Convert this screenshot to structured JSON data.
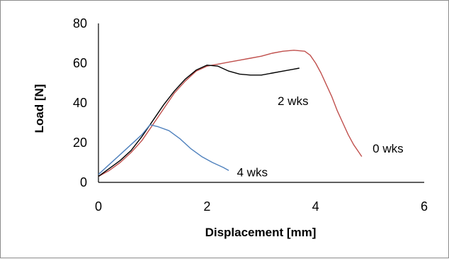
{
  "chart_data": {
    "type": "line",
    "title": "",
    "xlabel": "Displacement [mm]",
    "ylabel": "Load [N]",
    "xlim": [
      0,
      6
    ],
    "ylim": [
      0,
      80
    ],
    "xticks": [
      "0",
      "2",
      "4",
      "6"
    ],
    "yticks": [
      "0",
      "20",
      "40",
      "60",
      "80"
    ],
    "grid": false,
    "legend": "none; series labeled directly next to curves",
    "series": [
      {
        "name": "0 wks",
        "color": "#c0504d",
        "x": [
          0,
          0.2,
          0.4,
          0.6,
          0.8,
          1.0,
          1.2,
          1.4,
          1.6,
          1.8,
          2.0,
          2.2,
          2.4,
          2.6,
          2.8,
          3.0,
          3.2,
          3.4,
          3.6,
          3.8,
          3.9,
          4.0,
          4.1,
          4.2,
          4.3,
          4.4,
          4.5,
          4.6,
          4.7,
          4.8,
          4.85
        ],
        "y": [
          3,
          6,
          10,
          15,
          21,
          29,
          37,
          45,
          51,
          56,
          58.5,
          59.5,
          60.5,
          61.5,
          62.5,
          63.5,
          65,
          66,
          66.5,
          66,
          64,
          60,
          55,
          49,
          43,
          36,
          30,
          24,
          19,
          15,
          13
        ]
      },
      {
        "name": "2 wks",
        "color": "#000000",
        "x": [
          0,
          0.2,
          0.4,
          0.6,
          0.8,
          1.0,
          1.2,
          1.4,
          1.6,
          1.8,
          2.0,
          2.2,
          2.4,
          2.6,
          2.8,
          3.0,
          3.2,
          3.4,
          3.6,
          3.7
        ],
        "y": [
          3,
          7,
          11,
          16,
          23,
          31,
          39,
          46,
          52,
          56.5,
          59,
          58.5,
          56,
          54.5,
          54,
          54,
          55,
          56,
          57,
          57.5
        ]
      },
      {
        "name": "4 wks",
        "color": "#4f81bd",
        "x": [
          0,
          0.2,
          0.4,
          0.6,
          0.8,
          0.95,
          1.1,
          1.3,
          1.5,
          1.7,
          1.9,
          2.1,
          2.3,
          2.4
        ],
        "y": [
          4,
          9,
          14,
          19,
          24,
          29,
          28,
          26,
          22,
          17,
          13,
          10,
          7.5,
          6
        ]
      }
    ],
    "labels": [
      {
        "series": "0 wks",
        "text": "0 wks",
        "x": 5.05,
        "y": 15
      },
      {
        "series": "2 wks",
        "text": "2 wks",
        "x": 3.3,
        "y": 39
      },
      {
        "series": "4 wks",
        "text": "4 wks",
        "x": 2.55,
        "y": 3
      }
    ]
  }
}
